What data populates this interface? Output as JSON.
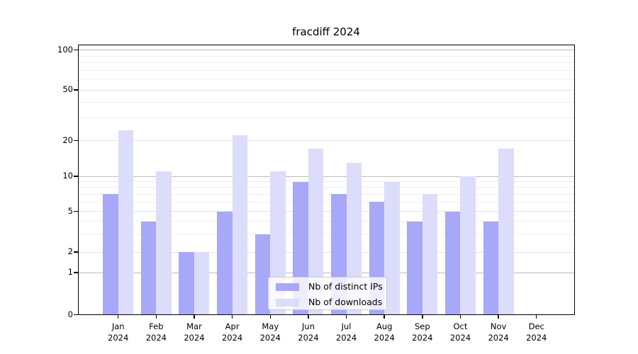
{
  "title": "fracdiff 2024",
  "chart_data": {
    "type": "bar",
    "title": "fracdiff 2024",
    "categories": [
      "Jan 2024",
      "Feb 2024",
      "Mar 2024",
      "Apr 2024",
      "May 2024",
      "Jun 2024",
      "Jul 2024",
      "Aug 2024",
      "Sep 2024",
      "Oct 2024",
      "Nov 2024",
      "Dec 2024"
    ],
    "x_tick_line1": [
      "Jan",
      "Feb",
      "Mar",
      "Apr",
      "May",
      "Jun",
      "Jul",
      "Aug",
      "Sep",
      "Oct",
      "Nov",
      "Dec"
    ],
    "x_tick_line2": "2024",
    "series": [
      {
        "name": "Nb of distinct IPs",
        "color": "#a8a8f8",
        "values": [
          7,
          4,
          2,
          5,
          3,
          9,
          7,
          6,
          4,
          5,
          4,
          0
        ]
      },
      {
        "name": "Nb of downloads",
        "color": "#dcdcfb",
        "values": [
          24,
          11,
          2,
          22,
          11,
          17,
          13,
          9,
          7,
          10,
          17,
          0
        ]
      }
    ],
    "yscale": "symlog",
    "ytick_labels": [
      "0",
      "1",
      "2",
      "5",
      "10",
      "20",
      "50",
      "100"
    ],
    "ylim": [
      0,
      110
    ],
    "grid": true,
    "legend_position": "lower center",
    "colors": {
      "spine": "#000000",
      "background": "#ffffff",
      "major_grid": "#bababa",
      "labeled_grid": "#e4e4e4",
      "minor_grid": "#efefef"
    }
  },
  "legend": {
    "items": [
      {
        "label": "Nb of distinct IPs",
        "color": "#a8a8f8"
      },
      {
        "label": "Nb of downloads",
        "color": "#dcdcfb"
      }
    ]
  }
}
